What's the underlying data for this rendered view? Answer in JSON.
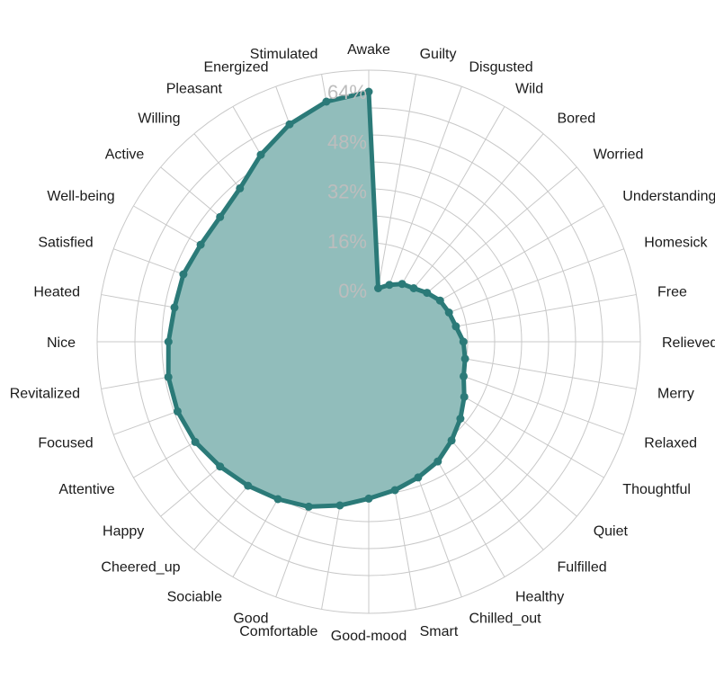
{
  "chart_data": {
    "type": "radar",
    "title": "",
    "colors": {
      "fill": "#91bdbb",
      "stroke": "#2b7a78",
      "grid": "#c8c8c8",
      "tick_text": "#bdbdbd"
    },
    "radial_ticks": [
      "0%",
      "16%",
      "32%",
      "48%",
      "64%"
    ],
    "radial_range": [
      0,
      64
    ],
    "inner_hole_fraction": 0.205,
    "grid": true,
    "categories": [
      "Awake",
      "Guilty",
      "Disgusted",
      "Wild",
      "Bored",
      "Worried",
      "Understanding",
      "Homesick",
      "Free",
      "Relieved",
      "Merry",
      "Relaxed",
      "Thoughtful",
      "Quiet",
      "Fulfilled",
      "Healthy",
      "Chilled_out",
      "Smart",
      "Good-mood",
      "Comfortable",
      "Good",
      "Sociable",
      "Cheered_up",
      "Happy",
      "Attentive",
      "Focused",
      "Revitalized",
      "Nice",
      "Heated",
      "Satisfied",
      "Well-being",
      "Active",
      "Willing",
      "Pleasant",
      "Energized",
      "Stimulated"
    ],
    "series": [
      {
        "values": [
          64,
          1,
          3,
          5,
          6,
          8,
          10,
          11,
          12,
          14,
          15,
          16,
          19,
          22,
          25,
          28,
          30,
          32,
          34,
          37,
          40,
          42,
          44,
          46,
          48,
          49,
          49,
          48,
          47,
          47,
          46,
          46,
          48,
          53,
          58,
          62
        ]
      }
    ]
  }
}
